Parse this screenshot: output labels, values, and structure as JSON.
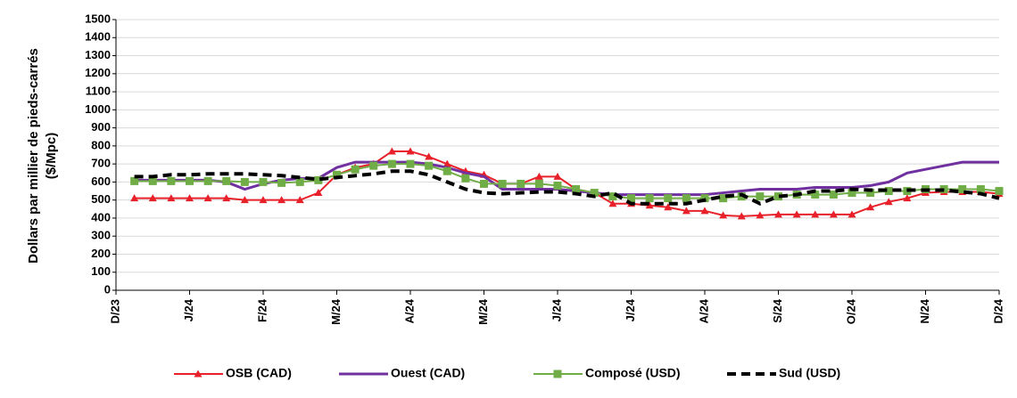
{
  "chart_data": {
    "type": "line",
    "y_label": [
      "Dollars par millier de pieds-carrés",
      "($/Mpc)"
    ],
    "categories": [
      "D/23",
      null,
      null,
      null,
      "J/24",
      null,
      null,
      null,
      "F/24",
      null,
      null,
      null,
      "M/24",
      null,
      null,
      null,
      "A/24",
      null,
      null,
      null,
      "M/24",
      null,
      null,
      null,
      "J/24",
      null,
      null,
      null,
      "J/24",
      null,
      null,
      null,
      "A/24",
      null,
      null,
      null,
      "S/24",
      null,
      null,
      null,
      "O/24",
      null,
      null,
      null,
      "N/24",
      null,
      null,
      null,
      "D/24"
    ],
    "series": [
      {
        "name": "OSB (CAD)",
        "color": "#e8202a",
        "marker": "triangle",
        "dash": false,
        "values": [
          null,
          510,
          510,
          510,
          510,
          510,
          510,
          500,
          500,
          500,
          500,
          540,
          640,
          680,
          700,
          770,
          770,
          740,
          700,
          660,
          640,
          590,
          590,
          630,
          630,
          560,
          540,
          480,
          480,
          470,
          460,
          440,
          440,
          415,
          410,
          415,
          420,
          420,
          420,
          420,
          420,
          460,
          490,
          510,
          540,
          545,
          545,
          545,
          535
        ]
      },
      {
        "name": "Ouest (CAD)",
        "color": "#7030a0",
        "marker": "none",
        "dash": false,
        "values": [
          null,
          610,
          610,
          610,
          610,
          610,
          600,
          560,
          590,
          610,
          620,
          620,
          680,
          710,
          710,
          710,
          710,
          700,
          680,
          650,
          630,
          560,
          560,
          560,
          560,
          550,
          540,
          530,
          530,
          530,
          530,
          530,
          530,
          540,
          550,
          560,
          560,
          560,
          570,
          570,
          570,
          580,
          600,
          650,
          670,
          690,
          710,
          710,
          710
        ]
      },
      {
        "name": "Composé (USD)",
        "color": "#70ad47",
        "marker": "square",
        "dash": false,
        "values": [
          null,
          605,
          605,
          605,
          605,
          605,
          605,
          600,
          600,
          595,
          600,
          610,
          640,
          670,
          690,
          700,
          700,
          690,
          660,
          620,
          590,
          590,
          590,
          590,
          580,
          560,
          540,
          520,
          510,
          510,
          510,
          510,
          510,
          510,
          520,
          520,
          520,
          530,
          530,
          530,
          540,
          540,
          550,
          550,
          560,
          560,
          560,
          560,
          550
        ]
      },
      {
        "name": "Sud (USD)",
        "color": "#000000",
        "marker": "none",
        "dash": true,
        "values": [
          null,
          630,
          630,
          640,
          640,
          645,
          645,
          645,
          640,
          635,
          625,
          615,
          625,
          635,
          645,
          660,
          660,
          640,
          600,
          560,
          540,
          535,
          540,
          545,
          545,
          535,
          520,
          540,
          480,
          480,
          480,
          480,
          500,
          520,
          530,
          480,
          520,
          530,
          550,
          550,
          560,
          555,
          555,
          555,
          555,
          555,
          545,
          535,
          510
        ]
      }
    ],
    "ylim": [
      0,
      1500
    ],
    "yticks": [
      0,
      100,
      200,
      300,
      400,
      500,
      600,
      700,
      800,
      900,
      1000,
      1100,
      1200,
      1300,
      1400,
      1500
    ],
    "grid": true,
    "legend": "bottom"
  }
}
